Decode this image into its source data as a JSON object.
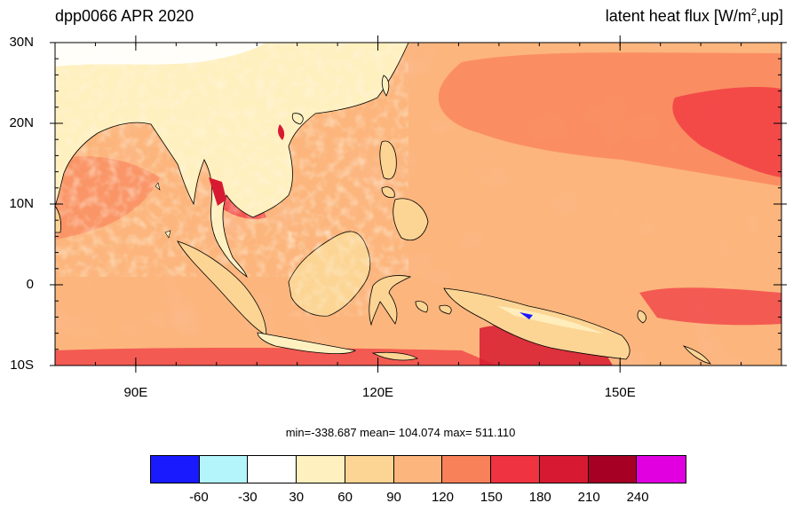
{
  "title": {
    "left": "dpp0066 APR 2020",
    "right_main": "latent heat flux [W/m",
    "right_sup": "2",
    "right_tail": ",up]"
  },
  "map": {
    "lon_range": [
      80,
      170
    ],
    "lat_range": [
      -10,
      30
    ],
    "y_ticks": [
      {
        "value": 30,
        "label": "30N"
      },
      {
        "value": 20,
        "label": "20N"
      },
      {
        "value": 10,
        "label": "10N"
      },
      {
        "value": 0,
        "label": "0"
      },
      {
        "value": -10,
        "label": "10S"
      }
    ],
    "x_ticks": [
      {
        "value": 90,
        "label": "90E"
      },
      {
        "value": 120,
        "label": "120E"
      },
      {
        "value": 150,
        "label": "150E"
      }
    ]
  },
  "stats": {
    "text": "min=-338.687  mean= 104.074  max= 511.110"
  },
  "colorbar": {
    "colors": [
      "#1a1aff",
      "#b3f5fb",
      "#ffffff",
      "#fff0bf",
      "#fcd595",
      "#fcb57c",
      "#f9815a",
      "#f03340",
      "#d71a31",
      "#a60025",
      "#e000e0"
    ],
    "labels": [
      "-60",
      "-30",
      "30",
      "60",
      "90",
      "120",
      "150",
      "180",
      "210",
      "240"
    ]
  }
}
